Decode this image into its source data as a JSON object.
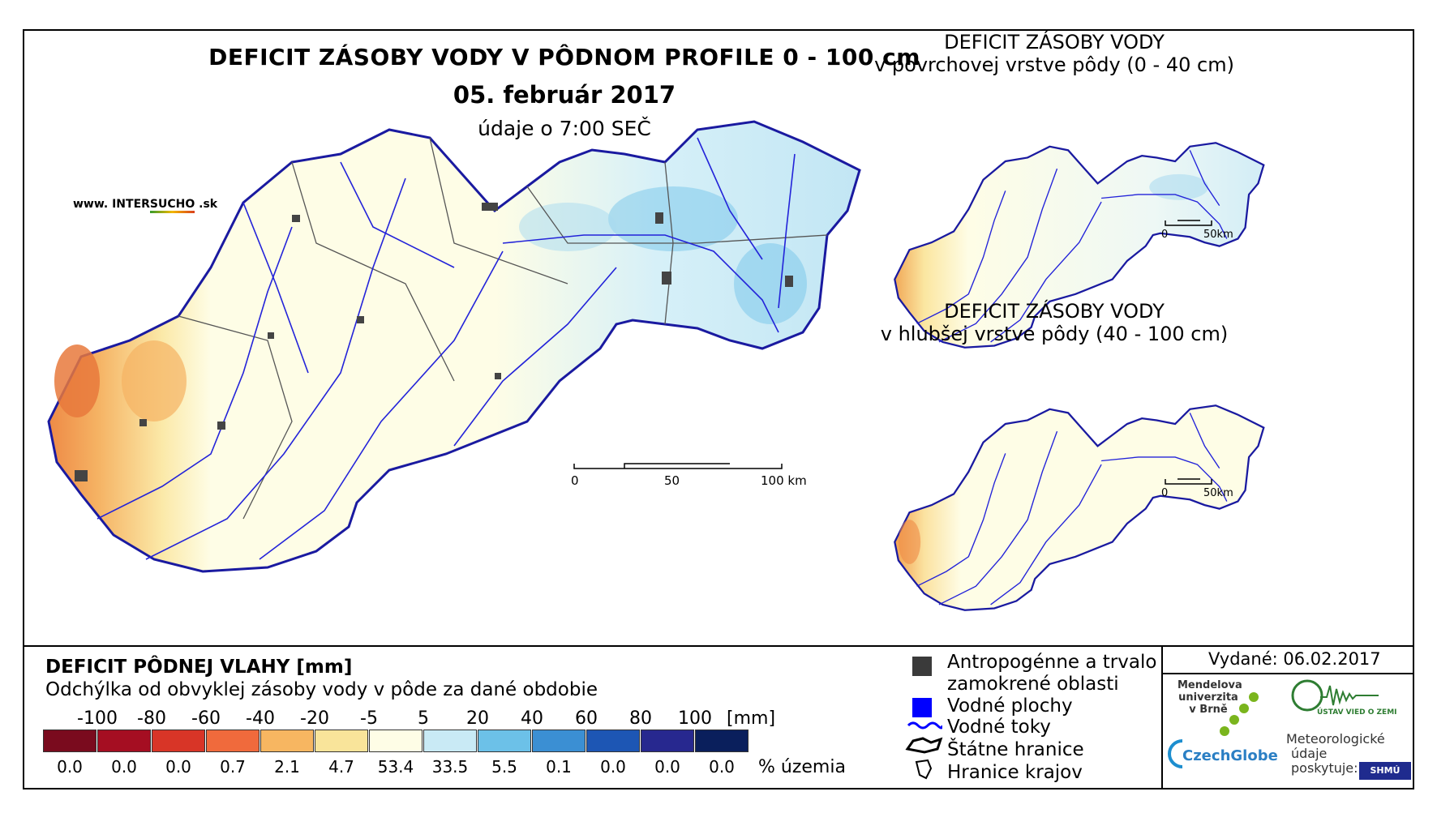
{
  "main": {
    "title": "DEFICIT ZÁSOBY VODY V PÔDNOM PROFILE 0 - 100 cm",
    "date": "05. február 2017",
    "time": "údaje o 7:00 SEČ",
    "website_prefix": "www. INTER",
    "website_highlight": "SUCHO",
    "website_suffix": " .sk",
    "scale": {
      "labels": [
        "0",
        "50",
        "100 km"
      ]
    }
  },
  "inset_top": {
    "title_line1": "DEFICIT ZÁSOBY VODY",
    "title_line2": "v povrchovej vrstve pôdy (0 - 40 cm)",
    "scale": {
      "labels": [
        "0",
        "50km"
      ]
    }
  },
  "inset_bottom": {
    "title_line1": "DEFICIT ZÁSOBY VODY",
    "title_line2": "v hlubšej vrstve pôdy (40 - 100 cm)",
    "scale": {
      "labels": [
        "0",
        "50km"
      ]
    }
  },
  "legend": {
    "title": "DEFICIT PÔDNEJ VLAHY [mm]",
    "subtitle": "Odchýlka od obvyklej zásoby vody v pôde za dané obdobie",
    "ticks": [
      "-100",
      "-80",
      "-60",
      "-40",
      "-20",
      "-5",
      "5",
      "20",
      "40",
      "60",
      "80",
      "100"
    ],
    "unit": "[mm]",
    "colors": [
      "#7a0b1e",
      "#a50e22",
      "#d83527",
      "#f06a3c",
      "#f7b661",
      "#f9e49a",
      "#fefde6",
      "#c9eaf5",
      "#6cc1e8",
      "#3b8fd3",
      "#1d56b4",
      "#27288f",
      "#0a1f5c"
    ],
    "percentages": [
      "0.0",
      "0.0",
      "0.0",
      "0.7",
      "2.1",
      "4.7",
      "53.4",
      "33.5",
      "5.5",
      "0.1",
      "0.0",
      "0.0",
      "0.0"
    ],
    "percent_unit": "% územia",
    "items": [
      {
        "label_line1": "Antropogénne a trvalo",
        "label_line2": "zamokrené oblasti",
        "symbol": "dark-gray-square"
      },
      {
        "label_line1": "Vodné plochy",
        "symbol": "blue-square"
      },
      {
        "label_line1": "Vodné toky",
        "symbol": "blue-wavy-line"
      },
      {
        "label_line1": "Štátne hranice",
        "symbol": "thick-outline"
      },
      {
        "label_line1": "Hranice krajov",
        "symbol": "thin-outline"
      }
    ]
  },
  "issued": "Vydané: 06.02.2017",
  "institutions": {
    "mendel": [
      "Mendelova",
      "univerzita",
      "v Brně"
    ],
    "czechglobe": "CzechGlobe",
    "uvoz": "ÚSTAV VIED O ZEMI",
    "meteo": [
      "Meteorologické",
      "údaje",
      "poskytuje:"
    ],
    "shmu": "SHMÚ"
  }
}
